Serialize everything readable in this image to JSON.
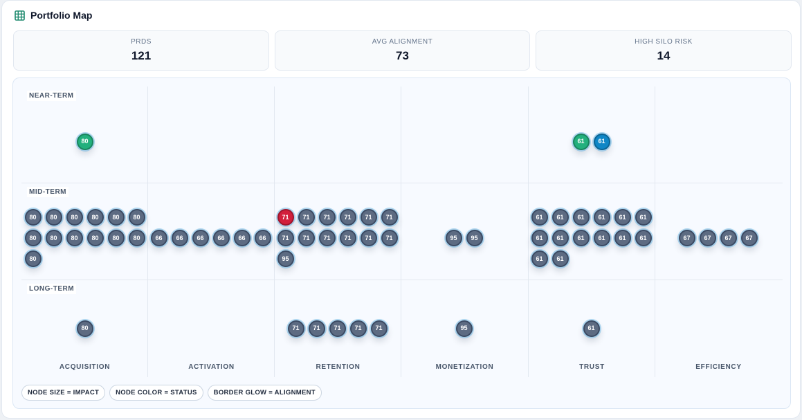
{
  "header": {
    "title": "Portfolio Map",
    "icon": "grid-icon"
  },
  "stats": [
    {
      "label": "PRDS",
      "value": "121"
    },
    {
      "label": "AVG ALIGNMENT",
      "value": "73"
    },
    {
      "label": "HIGH SILO RISK",
      "value": "14"
    }
  ],
  "map": {
    "columns": [
      "ACQUISITION",
      "ACTIVATION",
      "RETENTION",
      "MONETIZATION",
      "TRUST",
      "EFFICIENCY"
    ],
    "rows": [
      "NEAR-TERM",
      "MID-TERM",
      "LONG-TERM"
    ],
    "status_colors": {
      "default": "#5d6b82",
      "green": "#22b07d",
      "blue": "#0f86c6",
      "red": "#d21f3c"
    },
    "nodes": [
      {
        "score": "80",
        "status": "green",
        "lane": "ACQUISITION",
        "horizon": "NEAR-TERM"
      },
      {
        "score": "61",
        "status": "green",
        "lane": "TRUST",
        "horizon": "NEAR-TERM"
      },
      {
        "score": "61",
        "status": "blue",
        "lane": "TRUST",
        "horizon": "NEAR-TERM"
      },
      {
        "score": "80",
        "status": "default",
        "lane": "ACQUISITION",
        "horizon": "MID-TERM"
      },
      {
        "score": "80",
        "status": "default",
        "lane": "ACQUISITION",
        "horizon": "MID-TERM"
      },
      {
        "score": "80",
        "status": "default",
        "lane": "ACQUISITION",
        "horizon": "MID-TERM"
      },
      {
        "score": "80",
        "status": "default",
        "lane": "ACQUISITION",
        "horizon": "MID-TERM"
      },
      {
        "score": "80",
        "status": "default",
        "lane": "ACQUISITION",
        "horizon": "MID-TERM"
      },
      {
        "score": "80",
        "status": "default",
        "lane": "ACQUISITION",
        "horizon": "MID-TERM"
      },
      {
        "score": "80",
        "status": "default",
        "lane": "ACQUISITION",
        "horizon": "MID-TERM"
      },
      {
        "score": "80",
        "status": "default",
        "lane": "ACQUISITION",
        "horizon": "MID-TERM"
      },
      {
        "score": "80",
        "status": "default",
        "lane": "ACQUISITION",
        "horizon": "MID-TERM"
      },
      {
        "score": "80",
        "status": "default",
        "lane": "ACQUISITION",
        "horizon": "MID-TERM"
      },
      {
        "score": "80",
        "status": "default",
        "lane": "ACQUISITION",
        "horizon": "MID-TERM"
      },
      {
        "score": "80",
        "status": "default",
        "lane": "ACQUISITION",
        "horizon": "MID-TERM"
      },
      {
        "score": "80",
        "status": "default",
        "lane": "ACQUISITION",
        "horizon": "MID-TERM"
      },
      {
        "score": "66",
        "status": "default",
        "lane": "ACTIVATION",
        "horizon": "MID-TERM"
      },
      {
        "score": "66",
        "status": "default",
        "lane": "ACTIVATION",
        "horizon": "MID-TERM"
      },
      {
        "score": "66",
        "status": "default",
        "lane": "ACTIVATION",
        "horizon": "MID-TERM"
      },
      {
        "score": "66",
        "status": "default",
        "lane": "ACTIVATION",
        "horizon": "MID-TERM"
      },
      {
        "score": "66",
        "status": "default",
        "lane": "ACTIVATION",
        "horizon": "MID-TERM"
      },
      {
        "score": "66",
        "status": "default",
        "lane": "ACTIVATION",
        "horizon": "MID-TERM"
      },
      {
        "score": "71",
        "status": "red",
        "lane": "RETENTION",
        "horizon": "MID-TERM"
      },
      {
        "score": "71",
        "status": "default",
        "lane": "RETENTION",
        "horizon": "MID-TERM"
      },
      {
        "score": "71",
        "status": "default",
        "lane": "RETENTION",
        "horizon": "MID-TERM"
      },
      {
        "score": "71",
        "status": "default",
        "lane": "RETENTION",
        "horizon": "MID-TERM"
      },
      {
        "score": "71",
        "status": "default",
        "lane": "RETENTION",
        "horizon": "MID-TERM"
      },
      {
        "score": "71",
        "status": "default",
        "lane": "RETENTION",
        "horizon": "MID-TERM"
      },
      {
        "score": "71",
        "status": "default",
        "lane": "RETENTION",
        "horizon": "MID-TERM"
      },
      {
        "score": "71",
        "status": "default",
        "lane": "RETENTION",
        "horizon": "MID-TERM"
      },
      {
        "score": "71",
        "status": "default",
        "lane": "RETENTION",
        "horizon": "MID-TERM"
      },
      {
        "score": "71",
        "status": "default",
        "lane": "RETENTION",
        "horizon": "MID-TERM"
      },
      {
        "score": "71",
        "status": "default",
        "lane": "RETENTION",
        "horizon": "MID-TERM"
      },
      {
        "score": "71",
        "status": "default",
        "lane": "RETENTION",
        "horizon": "MID-TERM"
      },
      {
        "score": "95",
        "status": "default",
        "lane": "RETENTION",
        "horizon": "MID-TERM"
      },
      {
        "score": "95",
        "status": "default",
        "lane": "MONETIZATION",
        "horizon": "MID-TERM"
      },
      {
        "score": "95",
        "status": "default",
        "lane": "MONETIZATION",
        "horizon": "MID-TERM"
      },
      {
        "score": "61",
        "status": "default",
        "lane": "TRUST",
        "horizon": "MID-TERM"
      },
      {
        "score": "61",
        "status": "default",
        "lane": "TRUST",
        "horizon": "MID-TERM"
      },
      {
        "score": "61",
        "status": "default",
        "lane": "TRUST",
        "horizon": "MID-TERM"
      },
      {
        "score": "61",
        "status": "default",
        "lane": "TRUST",
        "horizon": "MID-TERM"
      },
      {
        "score": "61",
        "status": "default",
        "lane": "TRUST",
        "horizon": "MID-TERM"
      },
      {
        "score": "61",
        "status": "default",
        "lane": "TRUST",
        "horizon": "MID-TERM"
      },
      {
        "score": "61",
        "status": "default",
        "lane": "TRUST",
        "horizon": "MID-TERM"
      },
      {
        "score": "61",
        "status": "default",
        "lane": "TRUST",
        "horizon": "MID-TERM"
      },
      {
        "score": "61",
        "status": "default",
        "lane": "TRUST",
        "horizon": "MID-TERM"
      },
      {
        "score": "61",
        "status": "default",
        "lane": "TRUST",
        "horizon": "MID-TERM"
      },
      {
        "score": "61",
        "status": "default",
        "lane": "TRUST",
        "horizon": "MID-TERM"
      },
      {
        "score": "61",
        "status": "default",
        "lane": "TRUST",
        "horizon": "MID-TERM"
      },
      {
        "score": "61",
        "status": "default",
        "lane": "TRUST",
        "horizon": "MID-TERM"
      },
      {
        "score": "61",
        "status": "default",
        "lane": "TRUST",
        "horizon": "MID-TERM"
      },
      {
        "score": "67",
        "status": "default",
        "lane": "EFFICIENCY",
        "horizon": "MID-TERM"
      },
      {
        "score": "67",
        "status": "default",
        "lane": "EFFICIENCY",
        "horizon": "MID-TERM"
      },
      {
        "score": "67",
        "status": "default",
        "lane": "EFFICIENCY",
        "horizon": "MID-TERM"
      },
      {
        "score": "67",
        "status": "default",
        "lane": "EFFICIENCY",
        "horizon": "MID-TERM"
      },
      {
        "score": "80",
        "status": "default",
        "lane": "ACQUISITION",
        "horizon": "LONG-TERM"
      },
      {
        "score": "71",
        "status": "default",
        "lane": "RETENTION",
        "horizon": "LONG-TERM"
      },
      {
        "score": "71",
        "status": "default",
        "lane": "RETENTION",
        "horizon": "LONG-TERM"
      },
      {
        "score": "71",
        "status": "default",
        "lane": "RETENTION",
        "horizon": "LONG-TERM"
      },
      {
        "score": "71",
        "status": "default",
        "lane": "RETENTION",
        "horizon": "LONG-TERM"
      },
      {
        "score": "71",
        "status": "default",
        "lane": "RETENTION",
        "horizon": "LONG-TERM"
      },
      {
        "score": "95",
        "status": "default",
        "lane": "MONETIZATION",
        "horizon": "LONG-TERM"
      },
      {
        "score": "61",
        "status": "default",
        "lane": "TRUST",
        "horizon": "LONG-TERM"
      }
    ]
  },
  "legend": [
    "NODE SIZE = IMPACT",
    "NODE COLOR = STATUS",
    "BORDER GLOW = ALIGNMENT"
  ]
}
